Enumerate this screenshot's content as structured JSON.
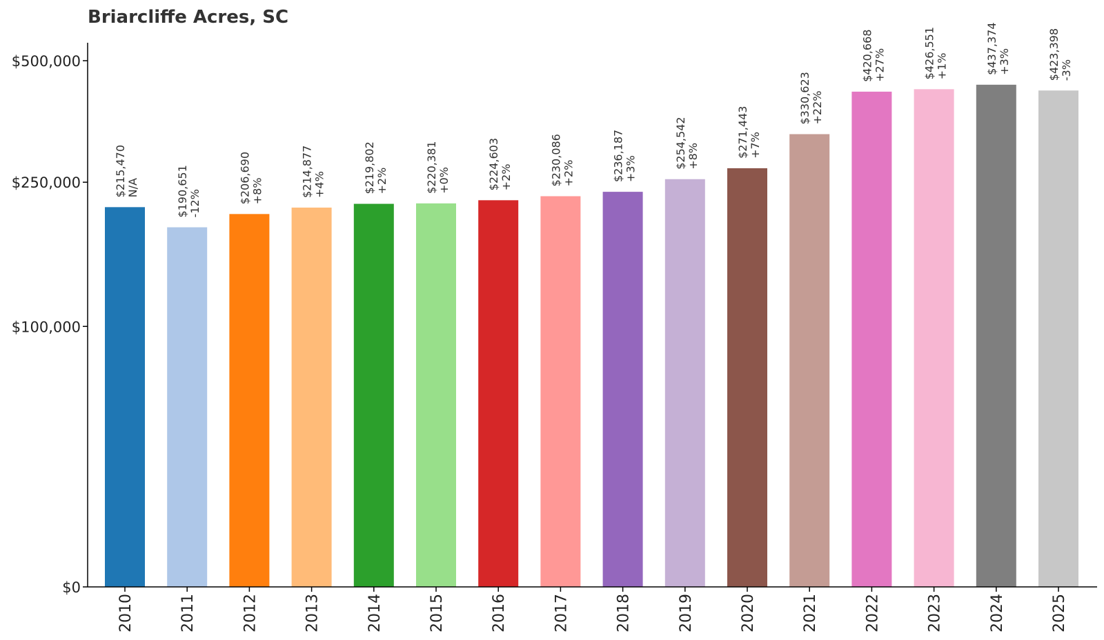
{
  "chart_data": {
    "type": "bar",
    "title": "Briarcliffe Acres, SC",
    "xlabel": "",
    "ylabel": "",
    "ylim": [
      0,
      500000
    ],
    "y_ticks": [
      {
        "value": 0,
        "label": "$0"
      },
      {
        "value": 100000,
        "label": "$100,000"
      },
      {
        "value": 250000,
        "label": "$250,000"
      },
      {
        "value": 500000,
        "label": "$500,000"
      }
    ],
    "categories": [
      "2010",
      "2011",
      "2012",
      "2013",
      "2014",
      "2015",
      "2016",
      "2017",
      "2018",
      "2019",
      "2020",
      "2021",
      "2022",
      "2023",
      "2024",
      "2025"
    ],
    "values": [
      215470,
      190651,
      206690,
      214877,
      219802,
      220381,
      224603,
      230086,
      236187,
      254542,
      271443,
      330623,
      420668,
      426551,
      437374,
      423398
    ],
    "value_labels": [
      "$215,470",
      "$190,651",
      "$206,690",
      "$214,877",
      "$219,802",
      "$220,381",
      "$224,603",
      "$230,086",
      "$236,187",
      "$254,542",
      "$271,443",
      "$330,623",
      "$420,668",
      "$426,551",
      "$437,374",
      "$423,398"
    ],
    "change_labels": [
      "N/A",
      "-12%",
      "+8%",
      "+4%",
      "+2%",
      "+0%",
      "+2%",
      "+2%",
      "+3%",
      "+8%",
      "+7%",
      "+22%",
      "+27%",
      "+1%",
      "+3%",
      "-3%"
    ],
    "colors": [
      "#1f77b4",
      "#aec7e8",
      "#ff7f0e",
      "#ffbb78",
      "#2ca02c",
      "#98df8a",
      "#d62728",
      "#ff9896",
      "#9467bd",
      "#c5b0d5",
      "#8c564b",
      "#c49c94",
      "#e377c2",
      "#f7b6d2",
      "#7f7f7f",
      "#c7c7c7"
    ],
    "grid": false,
    "legend": "none"
  }
}
